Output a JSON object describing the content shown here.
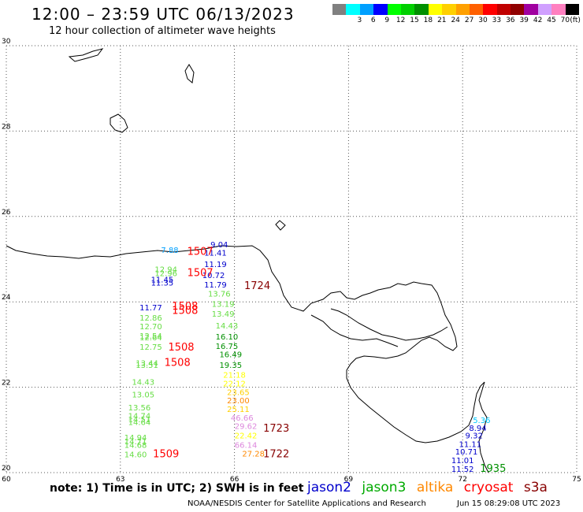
{
  "header": {
    "title": "12:00 – 23:59 UTC 06/13/2023",
    "subtitle": "12 hour collection of altimeter wave heights"
  },
  "legend": {
    "unit": "(ft)",
    "bins": [
      {
        "label": "",
        "color": "#808080"
      },
      {
        "label": "3",
        "color": "#00ffff"
      },
      {
        "label": "6",
        "color": "#00a0ff"
      },
      {
        "label": "9",
        "color": "#0000ff"
      },
      {
        "label": "12",
        "color": "#00ff00"
      },
      {
        "label": "15",
        "color": "#00d000"
      },
      {
        "label": "18",
        "color": "#009000"
      },
      {
        "label": "21",
        "color": "#ffff00"
      },
      {
        "label": "24",
        "color": "#ffd000"
      },
      {
        "label": "27",
        "color": "#ffa000"
      },
      {
        "label": "30",
        "color": "#ff6000"
      },
      {
        "label": "33",
        "color": "#ff0000"
      },
      {
        "label": "36",
        "color": "#c00000"
      },
      {
        "label": "39",
        "color": "#900000"
      },
      {
        "label": "42",
        "color": "#a000a0"
      },
      {
        "label": "45",
        "color": "#d0a0ff"
      },
      {
        "label": "70",
        "color": "#ff80c0"
      },
      {
        "label": "",
        "color": "#000000"
      }
    ]
  },
  "map": {
    "lon_ticks": [
      "60",
      "63",
      "66",
      "69",
      "72",
      "75"
    ],
    "lat_ticks": [
      "30",
      "28",
      "26",
      "24",
      "22",
      "20"
    ],
    "lon_range": [
      60,
      75
    ],
    "lat_range": [
      20,
      30
    ]
  },
  "satellite_colors": {
    "jason2": "#0000cc",
    "jason3": "#00aa00",
    "altika": "#ff8800",
    "cryosat": "#ff0000",
    "s3a": "#880000"
  },
  "wave_labels": [
    {
      "text": "7.88",
      "lon": 64.3,
      "lat": 25.15,
      "color": "#00a0ff"
    },
    {
      "text": "9.04",
      "lon": 65.6,
      "lat": 25.28,
      "color": "#0000cc"
    },
    {
      "text": "11.41",
      "lon": 65.5,
      "lat": 25.08,
      "color": "#0000cc"
    },
    {
      "text": "11.19",
      "lon": 65.5,
      "lat": 24.82,
      "color": "#0000cc"
    },
    {
      "text": "10.72",
      "lon": 65.45,
      "lat": 24.56,
      "color": "#0000cc"
    },
    {
      "text": "11.79",
      "lon": 65.5,
      "lat": 24.34,
      "color": "#0000cc"
    },
    {
      "text": "13.76",
      "lon": 65.6,
      "lat": 24.12,
      "color": "#66dd44"
    },
    {
      "text": "13.19",
      "lon": 65.7,
      "lat": 23.88,
      "color": "#66dd44"
    },
    {
      "text": "13.49",
      "lon": 65.7,
      "lat": 23.65,
      "color": "#66dd44"
    },
    {
      "text": "14.43",
      "lon": 65.8,
      "lat": 23.38,
      "color": "#66dd44"
    },
    {
      "text": "16.10",
      "lon": 65.8,
      "lat": 23.12,
      "color": "#009000"
    },
    {
      "text": "16.75",
      "lon": 65.8,
      "lat": 22.9,
      "color": "#009000"
    },
    {
      "text": "16.49",
      "lon": 65.9,
      "lat": 22.7,
      "color": "#009000"
    },
    {
      "text": "19.35",
      "lon": 65.9,
      "lat": 22.45,
      "color": "#009000"
    },
    {
      "text": "21.18",
      "lon": 66.0,
      "lat": 22.22,
      "color": "#ffff00"
    },
    {
      "text": "22.12",
      "lon": 66.0,
      "lat": 22.02,
      "color": "#ffff00"
    },
    {
      "text": "23.65",
      "lon": 66.1,
      "lat": 21.82,
      "color": "#ffd000"
    },
    {
      "text": "23.00",
      "lon": 66.1,
      "lat": 21.62,
      "color": "#ff8800"
    },
    {
      "text": "25.11",
      "lon": 66.1,
      "lat": 21.42,
      "color": "#ffd000"
    },
    {
      "text": "46.66",
      "lon": 66.2,
      "lat": 21.22,
      "color": "#dd88dd"
    },
    {
      "text": "29.62",
      "lon": 66.3,
      "lat": 21.02,
      "color": "#dd88dd"
    },
    {
      "text": "22.42",
      "lon": 66.3,
      "lat": 20.8,
      "color": "#ffff00"
    },
    {
      "text": "66.14",
      "lon": 66.3,
      "lat": 20.58,
      "color": "#dd88dd"
    },
    {
      "text": "27.28",
      "lon": 66.5,
      "lat": 20.38,
      "color": "#ff8800"
    },
    {
      "text": "12.94",
      "lon": 64.2,
      "lat": 24.7,
      "color": "#66dd44"
    },
    {
      "text": "12.96",
      "lon": 64.2,
      "lat": 24.6,
      "color": "#66dd44"
    },
    {
      "text": "11.45",
      "lon": 64.1,
      "lat": 24.46,
      "color": "#0000cc"
    },
    {
      "text": "11.35",
      "lon": 64.1,
      "lat": 24.38,
      "color": "#0000cc"
    },
    {
      "text": "11.77",
      "lon": 63.8,
      "lat": 23.8,
      "color": "#0000cc"
    },
    {
      "text": "12.86",
      "lon": 63.8,
      "lat": 23.56,
      "color": "#66dd44"
    },
    {
      "text": "12.70",
      "lon": 63.8,
      "lat": 23.36,
      "color": "#66dd44"
    },
    {
      "text": "12.54",
      "lon": 63.8,
      "lat": 23.14,
      "color": "#66dd44"
    },
    {
      "text": "12.64",
      "lon": 63.8,
      "lat": 23.1,
      "color": "#66dd44"
    },
    {
      "text": "12.75",
      "lon": 63.8,
      "lat": 22.88,
      "color": "#66dd44"
    },
    {
      "text": "13.44",
      "lon": 63.7,
      "lat": 22.5,
      "color": "#66dd44"
    },
    {
      "text": "13.51",
      "lon": 63.7,
      "lat": 22.45,
      "color": "#66dd44"
    },
    {
      "text": "14.43",
      "lon": 63.6,
      "lat": 22.06,
      "color": "#66dd44"
    },
    {
      "text": "13.05",
      "lon": 63.6,
      "lat": 21.76,
      "color": "#66dd44"
    },
    {
      "text": "13.56",
      "lon": 63.5,
      "lat": 21.46,
      "color": "#66dd44"
    },
    {
      "text": "14.74",
      "lon": 63.5,
      "lat": 21.26,
      "color": "#66dd44"
    },
    {
      "text": "14.51",
      "lon": 63.5,
      "lat": 21.18,
      "color": "#66dd44"
    },
    {
      "text": "14.64",
      "lon": 63.5,
      "lat": 21.12,
      "color": "#66dd44"
    },
    {
      "text": "14.94",
      "lon": 63.4,
      "lat": 20.76,
      "color": "#66dd44"
    },
    {
      "text": "14.71",
      "lon": 63.4,
      "lat": 20.66,
      "color": "#66dd44"
    },
    {
      "text": "14.68",
      "lon": 63.4,
      "lat": 20.58,
      "color": "#66dd44"
    },
    {
      "text": "14.60",
      "lon": 63.4,
      "lat": 20.36,
      "color": "#66dd44"
    },
    {
      "text": "5.36",
      "lon": 72.5,
      "lat": 21.16,
      "color": "#00c8ff"
    },
    {
      "text": "8.94",
      "lon": 72.4,
      "lat": 20.98,
      "color": "#0000cc"
    },
    {
      "text": "9.32",
      "lon": 72.3,
      "lat": 20.8,
      "color": "#0000cc"
    },
    {
      "text": "11.11",
      "lon": 72.2,
      "lat": 20.6,
      "color": "#0000cc"
    },
    {
      "text": "10.71",
      "lon": 72.1,
      "lat": 20.42,
      "color": "#0000cc"
    },
    {
      "text": "11.01",
      "lon": 72.0,
      "lat": 20.22,
      "color": "#0000cc"
    },
    {
      "text": "11.52",
      "lon": 72.0,
      "lat": 20.02,
      "color": "#0000cc"
    }
  ],
  "time_labels": [
    {
      "text": "1507",
      "lon": 65.1,
      "lat": 25.1,
      "color": "#ff0000"
    },
    {
      "text": "1507",
      "lon": 65.1,
      "lat": 24.6,
      "color": "#ff0000"
    },
    {
      "text": "1724",
      "lon": 66.6,
      "lat": 24.3,
      "color": "#880000"
    },
    {
      "text": "1508",
      "lon": 64.7,
      "lat": 23.82,
      "color": "#ff0000"
    },
    {
      "text": "1508",
      "lon": 64.7,
      "lat": 23.72,
      "color": "#ff0000"
    },
    {
      "text": "1508",
      "lon": 64.6,
      "lat": 22.86,
      "color": "#ff0000"
    },
    {
      "text": "1508",
      "lon": 64.5,
      "lat": 22.5,
      "color": "#ff0000"
    },
    {
      "text": "1723",
      "lon": 67.1,
      "lat": 20.96,
      "color": "#880000"
    },
    {
      "text": "1509",
      "lon": 64.2,
      "lat": 20.36,
      "color": "#ff0000"
    },
    {
      "text": "1722",
      "lon": 67.1,
      "lat": 20.36,
      "color": "#880000"
    },
    {
      "text": "1935",
      "lon": 72.8,
      "lat": 20.02,
      "color": "#009000"
    }
  ],
  "footer": {
    "note": "note:  1) Time is in UTC;  2) SWH is in feet",
    "satellites": [
      "jason2",
      "jason3",
      "altika",
      "cryosat",
      "s3a"
    ],
    "credit": "NOAA/NESDIS Center for Satellite Applications and Research",
    "timestamp": "Jun 15 08:29:08 UTC 2023"
  }
}
